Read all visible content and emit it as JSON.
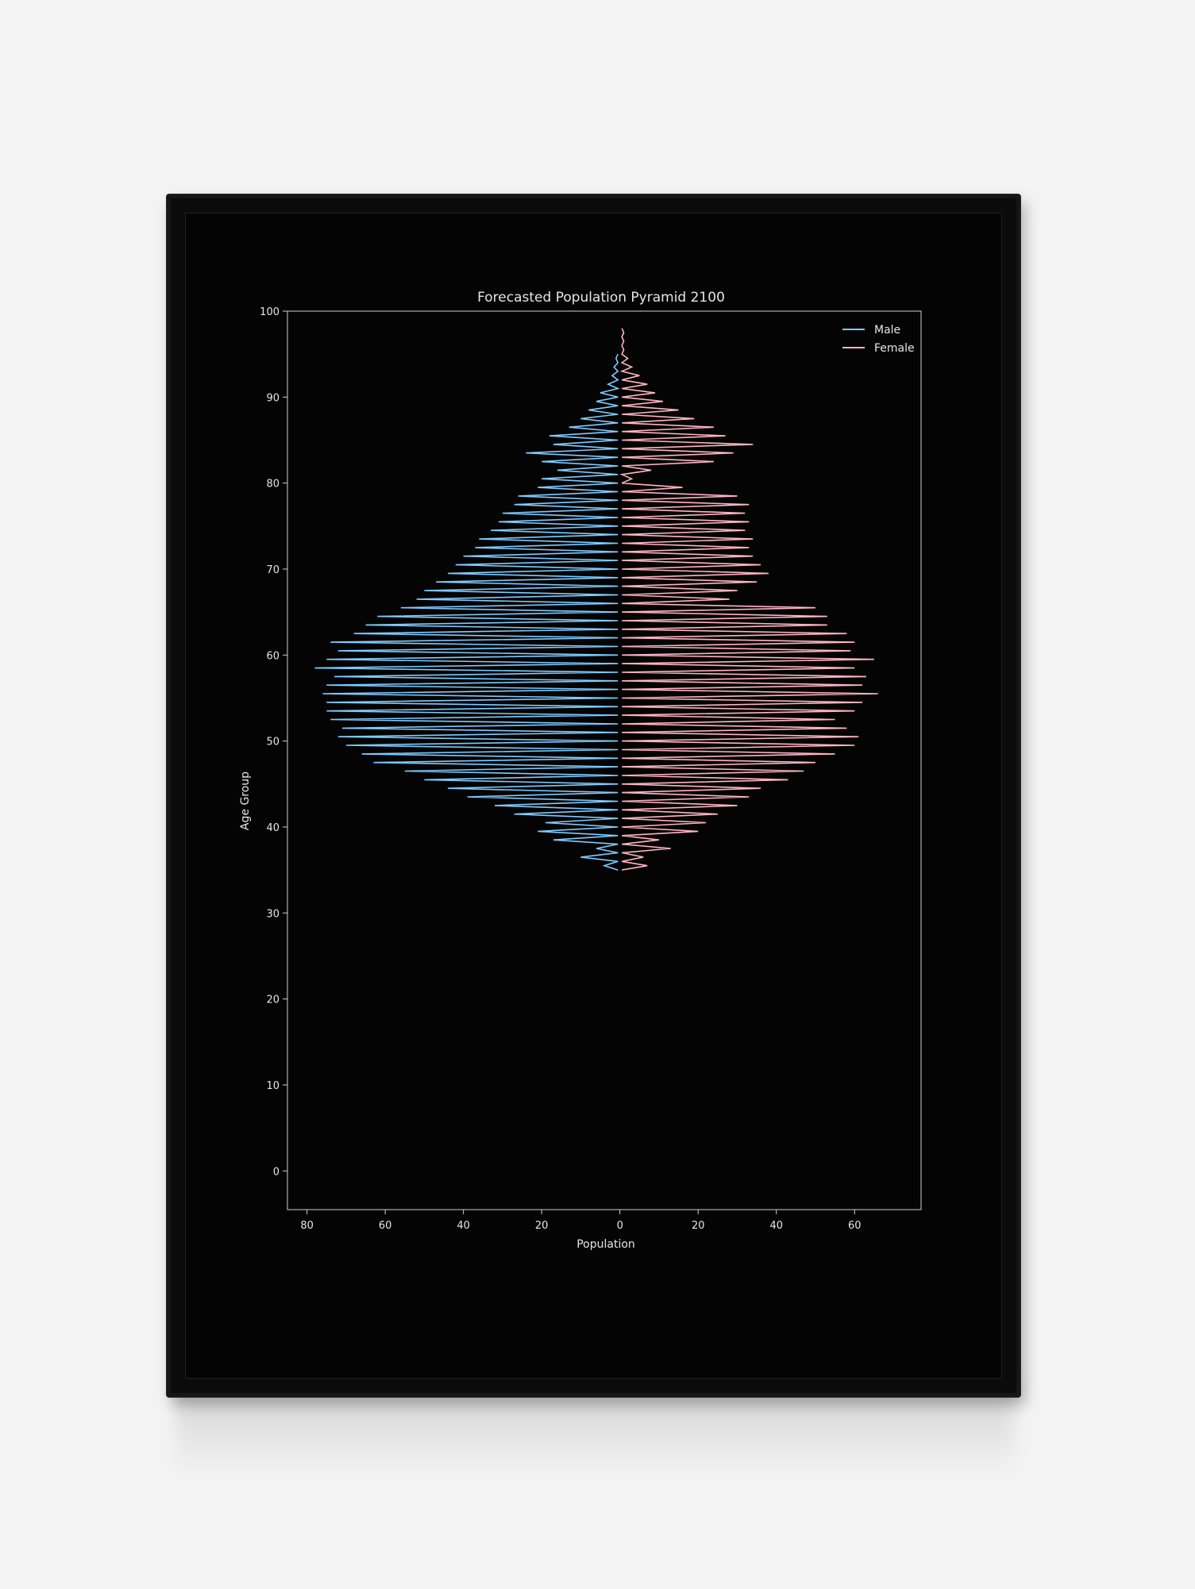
{
  "chart_data": {
    "type": "line",
    "title": "Forecasted Population Pyramid 2100",
    "xlabel": "Population",
    "ylabel": "Age Group",
    "xlim": [
      -85,
      77
    ],
    "ylim": [
      -4.5,
      100
    ],
    "xticks": [
      {
        "value": -80,
        "label": "80"
      },
      {
        "value": -60,
        "label": "60"
      },
      {
        "value": -40,
        "label": "40"
      },
      {
        "value": -20,
        "label": "20"
      },
      {
        "value": 0,
        "label": "0"
      },
      {
        "value": 20,
        "label": "20"
      },
      {
        "value": 40,
        "label": "40"
      },
      {
        "value": 60,
        "label": "60"
      }
    ],
    "yticks": [
      0,
      10,
      20,
      30,
      40,
      50,
      60,
      70,
      80,
      90,
      100
    ],
    "grid": false,
    "legend_position": "top-right",
    "series": [
      {
        "name": "Male",
        "color": "#7ecbff",
        "points": [
          [
            -0.5,
            35.0
          ],
          [
            -4.0,
            35.5
          ],
          [
            -0.5,
            36.0
          ],
          [
            -10.0,
            36.5
          ],
          [
            -0.5,
            37.0
          ],
          [
            -6.0,
            37.5
          ],
          [
            -0.5,
            38.0
          ],
          [
            -17.0,
            38.5
          ],
          [
            -0.5,
            39.0
          ],
          [
            -21.0,
            39.5
          ],
          [
            -0.5,
            40.0
          ],
          [
            -19.0,
            40.5
          ],
          [
            -0.5,
            41.0
          ],
          [
            -27.0,
            41.5
          ],
          [
            -0.5,
            42.0
          ],
          [
            -32.0,
            42.5
          ],
          [
            -0.5,
            43.0
          ],
          [
            -39.0,
            43.5
          ],
          [
            -0.5,
            44.0
          ],
          [
            -44.0,
            44.5
          ],
          [
            -0.5,
            45.0
          ],
          [
            -50.0,
            45.5
          ],
          [
            -0.5,
            46.0
          ],
          [
            -55.0,
            46.5
          ],
          [
            -0.5,
            47.0
          ],
          [
            -63.0,
            47.5
          ],
          [
            -0.5,
            48.0
          ],
          [
            -66.0,
            48.5
          ],
          [
            -0.5,
            49.0
          ],
          [
            -70.0,
            49.5
          ],
          [
            -0.5,
            50.0
          ],
          [
            -72.0,
            50.5
          ],
          [
            -0.5,
            51.0
          ],
          [
            -71.0,
            51.5
          ],
          [
            -0.5,
            52.0
          ],
          [
            -74.0,
            52.5
          ],
          [
            -0.5,
            53.0
          ],
          [
            -75.0,
            53.5
          ],
          [
            -0.5,
            54.0
          ],
          [
            -75.0,
            54.5
          ],
          [
            -0.5,
            55.0
          ],
          [
            -76.0,
            55.5
          ],
          [
            -0.5,
            56.0
          ],
          [
            -75.0,
            56.5
          ],
          [
            -0.5,
            57.0
          ],
          [
            -73.0,
            57.5
          ],
          [
            -0.5,
            58.0
          ],
          [
            -78.0,
            58.5
          ],
          [
            -0.5,
            59.0
          ],
          [
            -75.0,
            59.5
          ],
          [
            -0.5,
            60.0
          ],
          [
            -72.0,
            60.5
          ],
          [
            -0.5,
            61.0
          ],
          [
            -74.0,
            61.5
          ],
          [
            -0.5,
            62.0
          ],
          [
            -68.0,
            62.5
          ],
          [
            -0.5,
            63.0
          ],
          [
            -65.0,
            63.5
          ],
          [
            -0.5,
            64.0
          ],
          [
            -62.0,
            64.5
          ],
          [
            -0.5,
            65.0
          ],
          [
            -56.0,
            65.5
          ],
          [
            -0.5,
            66.0
          ],
          [
            -52.0,
            66.5
          ],
          [
            -0.5,
            67.0
          ],
          [
            -50.0,
            67.5
          ],
          [
            -0.5,
            68.0
          ],
          [
            -47.0,
            68.5
          ],
          [
            -0.5,
            69.0
          ],
          [
            -44.0,
            69.5
          ],
          [
            -0.5,
            70.0
          ],
          [
            -42.0,
            70.5
          ],
          [
            -0.5,
            71.0
          ],
          [
            -40.0,
            71.5
          ],
          [
            -0.5,
            72.0
          ],
          [
            -37.0,
            72.5
          ],
          [
            -0.5,
            73.0
          ],
          [
            -36.0,
            73.5
          ],
          [
            -0.5,
            74.0
          ],
          [
            -33.0,
            74.5
          ],
          [
            -0.5,
            75.0
          ],
          [
            -31.0,
            75.5
          ],
          [
            -0.5,
            76.0
          ],
          [
            -30.0,
            76.5
          ],
          [
            -0.5,
            77.0
          ],
          [
            -27.0,
            77.5
          ],
          [
            -0.5,
            78.0
          ],
          [
            -26.0,
            78.5
          ],
          [
            -0.5,
            79.0
          ],
          [
            -21.0,
            79.5
          ],
          [
            -0.5,
            80.0
          ],
          [
            -20.0,
            80.5
          ],
          [
            -0.5,
            81.0
          ],
          [
            -16.0,
            81.5
          ],
          [
            -0.5,
            82.0
          ],
          [
            -20.0,
            82.5
          ],
          [
            -0.5,
            83.0
          ],
          [
            -24.0,
            83.5
          ],
          [
            -0.5,
            84.0
          ],
          [
            -17.0,
            84.5
          ],
          [
            -0.5,
            85.0
          ],
          [
            -18.0,
            85.5
          ],
          [
            -0.5,
            86.0
          ],
          [
            -13.0,
            86.5
          ],
          [
            -0.5,
            87.0
          ],
          [
            -10.0,
            87.5
          ],
          [
            -0.5,
            88.0
          ],
          [
            -8.0,
            88.5
          ],
          [
            -0.5,
            89.0
          ],
          [
            -6.0,
            89.5
          ],
          [
            -0.5,
            90.0
          ],
          [
            -5.0,
            90.5
          ],
          [
            -0.5,
            91.0
          ],
          [
            -3.0,
            91.5
          ],
          [
            -0.5,
            92.0
          ],
          [
            -2.0,
            92.5
          ],
          [
            -0.5,
            93.0
          ],
          [
            -1.5,
            93.5
          ],
          [
            -0.5,
            94.0
          ],
          [
            -1.0,
            94.5
          ],
          [
            -0.5,
            95.0
          ]
        ]
      },
      {
        "name": "Female",
        "color": "#ffb3c6",
        "points": [
          [
            0.5,
            35.0
          ],
          [
            7.0,
            35.5
          ],
          [
            0.5,
            36.0
          ],
          [
            6.0,
            36.5
          ],
          [
            0.5,
            37.0
          ],
          [
            13.0,
            37.5
          ],
          [
            0.5,
            38.0
          ],
          [
            10.0,
            38.5
          ],
          [
            0.5,
            39.0
          ],
          [
            20.0,
            39.5
          ],
          [
            0.5,
            40.0
          ],
          [
            22.0,
            40.5
          ],
          [
            0.5,
            41.0
          ],
          [
            25.0,
            41.5
          ],
          [
            0.5,
            42.0
          ],
          [
            30.0,
            42.5
          ],
          [
            0.5,
            43.0
          ],
          [
            33.0,
            43.5
          ],
          [
            0.5,
            44.0
          ],
          [
            36.0,
            44.5
          ],
          [
            0.5,
            45.0
          ],
          [
            43.0,
            45.5
          ],
          [
            0.5,
            46.0
          ],
          [
            47.0,
            46.5
          ],
          [
            0.5,
            47.0
          ],
          [
            50.0,
            47.5
          ],
          [
            0.5,
            48.0
          ],
          [
            55.0,
            48.5
          ],
          [
            0.5,
            49.0
          ],
          [
            60.0,
            49.5
          ],
          [
            0.5,
            50.0
          ],
          [
            61.0,
            50.5
          ],
          [
            0.5,
            51.0
          ],
          [
            58.0,
            51.5
          ],
          [
            0.5,
            52.0
          ],
          [
            55.0,
            52.5
          ],
          [
            0.5,
            53.0
          ],
          [
            60.0,
            53.5
          ],
          [
            0.5,
            54.0
          ],
          [
            62.0,
            54.5
          ],
          [
            0.5,
            55.0
          ],
          [
            66.0,
            55.5
          ],
          [
            0.5,
            56.0
          ],
          [
            62.0,
            56.5
          ],
          [
            0.5,
            57.0
          ],
          [
            63.0,
            57.5
          ],
          [
            0.5,
            58.0
          ],
          [
            60.0,
            58.5
          ],
          [
            0.5,
            59.0
          ],
          [
            65.0,
            59.5
          ],
          [
            0.5,
            60.0
          ],
          [
            59.0,
            60.5
          ],
          [
            0.5,
            61.0
          ],
          [
            60.0,
            61.5
          ],
          [
            0.5,
            62.0
          ],
          [
            58.0,
            62.5
          ],
          [
            0.5,
            63.0
          ],
          [
            53.0,
            63.5
          ],
          [
            0.5,
            64.0
          ],
          [
            53.0,
            64.5
          ],
          [
            0.5,
            65.0
          ],
          [
            50.0,
            65.5
          ],
          [
            0.5,
            66.0
          ],
          [
            28.0,
            66.5
          ],
          [
            0.5,
            67.0
          ],
          [
            30.0,
            67.5
          ],
          [
            0.5,
            68.0
          ],
          [
            35.0,
            68.5
          ],
          [
            0.5,
            69.0
          ],
          [
            38.0,
            69.5
          ],
          [
            0.5,
            70.0
          ],
          [
            36.0,
            70.5
          ],
          [
            0.5,
            71.0
          ],
          [
            34.0,
            71.5
          ],
          [
            0.5,
            72.0
          ],
          [
            33.0,
            72.5
          ],
          [
            0.5,
            73.0
          ],
          [
            34.0,
            73.5
          ],
          [
            0.5,
            74.0
          ],
          [
            32.0,
            74.5
          ],
          [
            0.5,
            75.0
          ],
          [
            33.0,
            75.5
          ],
          [
            0.5,
            76.0
          ],
          [
            32.0,
            76.5
          ],
          [
            0.5,
            77.0
          ],
          [
            33.0,
            77.5
          ],
          [
            0.5,
            78.0
          ],
          [
            30.0,
            78.5
          ],
          [
            0.5,
            79.0
          ],
          [
            16.0,
            79.5
          ],
          [
            0.5,
            80.0
          ],
          [
            3.0,
            80.5
          ],
          [
            0.5,
            81.0
          ],
          [
            8.0,
            81.5
          ],
          [
            0.5,
            82.0
          ],
          [
            24.0,
            82.5
          ],
          [
            0.5,
            83.0
          ],
          [
            29.0,
            83.5
          ],
          [
            0.5,
            84.0
          ],
          [
            34.0,
            84.5
          ],
          [
            0.5,
            85.0
          ],
          [
            27.0,
            85.5
          ],
          [
            0.5,
            86.0
          ],
          [
            24.0,
            86.5
          ],
          [
            0.5,
            87.0
          ],
          [
            19.0,
            87.5
          ],
          [
            0.5,
            88.0
          ],
          [
            15.0,
            88.5
          ],
          [
            0.5,
            89.0
          ],
          [
            11.0,
            89.5
          ],
          [
            0.5,
            90.0
          ],
          [
            9.0,
            90.5
          ],
          [
            0.5,
            91.0
          ],
          [
            7.0,
            91.5
          ],
          [
            0.5,
            92.0
          ],
          [
            5.0,
            92.5
          ],
          [
            0.5,
            93.0
          ],
          [
            3.0,
            93.5
          ],
          [
            0.5,
            94.0
          ],
          [
            2.0,
            94.5
          ],
          [
            0.5,
            95.0
          ],
          [
            1.0,
            95.5
          ],
          [
            0.5,
            96.0
          ],
          [
            1.0,
            96.5
          ],
          [
            0.5,
            97.0
          ],
          [
            1.0,
            97.5
          ],
          [
            0.5,
            98.0
          ]
        ]
      }
    ]
  }
}
